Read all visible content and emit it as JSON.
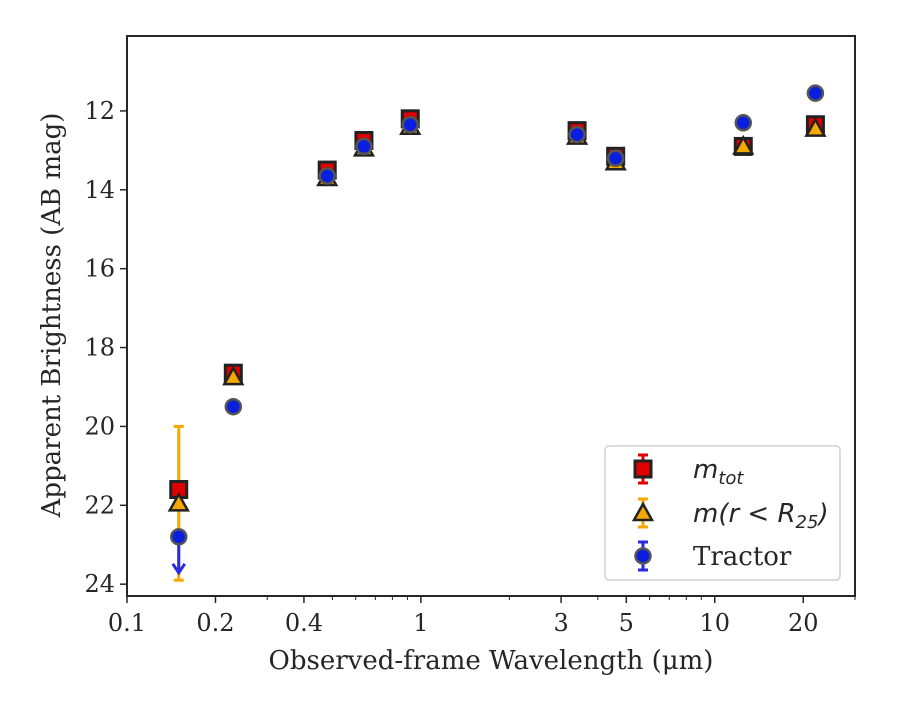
{
  "chart_data": {
    "type": "scatter",
    "xlabel": "Observed-frame Wavelength (μm)",
    "ylabel": "Apparent Brightness (AB mag)",
    "xscale": "log",
    "xlim": [
      0.1,
      30
    ],
    "ylim": [
      24.3,
      10.1
    ],
    "y_inverted": true,
    "grid": false,
    "legend_position": "lower-right",
    "x_ticks": [
      0.1,
      0.2,
      0.4,
      1,
      3,
      5,
      10,
      20
    ],
    "x_tick_labels": [
      "0.1",
      "0.2",
      "0.4",
      "1",
      "3",
      "5",
      "10",
      "20"
    ],
    "y_ticks": [
      12,
      14,
      16,
      18,
      20,
      22,
      24
    ],
    "y_tick_labels": [
      "12",
      "14",
      "16",
      "18",
      "20",
      "22",
      "24"
    ],
    "series": [
      {
        "name": "m_tot",
        "marker": "square",
        "color": "#e00000",
        "edge_color": "#222222",
        "errorbar_color": "#e00000",
        "x": [
          0.15,
          0.23,
          0.48,
          0.64,
          0.92,
          3.4,
          4.6,
          12.5,
          22.0
        ],
        "y": [
          21.6,
          18.65,
          13.5,
          12.75,
          12.2,
          12.5,
          13.15,
          12.9,
          12.35
        ],
        "err": [
          0.0,
          0.1,
          0.08,
          0.08,
          0.08,
          0.08,
          0.08,
          0.08,
          0.08
        ]
      },
      {
        "name": "m(r < R25)",
        "marker": "triangle",
        "color": "#f5a800",
        "edge_color": "#222222",
        "errorbar_color": "#f5a800",
        "x": [
          0.15,
          0.23,
          0.48,
          0.64,
          0.92,
          3.4,
          4.6,
          12.5,
          22.0
        ],
        "y": [
          21.95,
          18.75,
          13.7,
          12.95,
          12.4,
          12.65,
          13.3,
          12.9,
          12.45
        ],
        "err_low": [
          1.95,
          0.05,
          0.05,
          0.05,
          0.05,
          0.05,
          0.05,
          0.05,
          0.05
        ],
        "err_high": [
          1.95,
          0.05,
          0.05,
          0.05,
          0.05,
          0.05,
          0.05,
          0.05,
          0.05
        ]
      },
      {
        "name": "Tractor",
        "marker": "circle",
        "color": "#0a1ee0",
        "edge_color": "#555555",
        "errorbar_color": "#2a2ae0",
        "x": [
          0.15,
          0.23,
          0.48,
          0.64,
          0.92,
          3.4,
          4.6,
          12.5,
          22.0
        ],
        "y": [
          22.8,
          19.5,
          13.65,
          12.9,
          12.35,
          12.6,
          13.2,
          12.3,
          11.55
        ],
        "upper_limit": [
          true,
          false,
          false,
          false,
          false,
          false,
          false,
          false,
          false
        ]
      }
    ],
    "legend": [
      {
        "label_base": "m",
        "label_sub": "tot",
        "label_tail": ""
      },
      {
        "label_base": "m(r < R",
        "label_sub": "25",
        "label_tail": ")"
      },
      {
        "label_base": "Tractor",
        "label_sub": "",
        "label_tail": ""
      }
    ]
  }
}
